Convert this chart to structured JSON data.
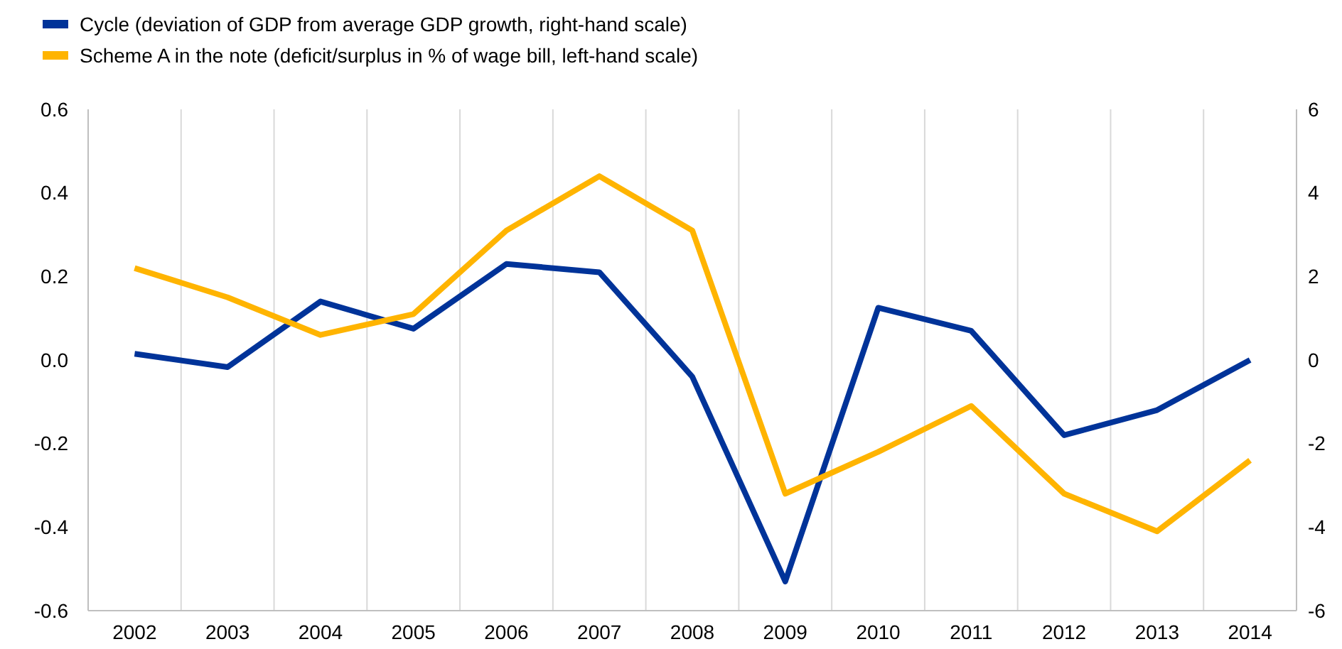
{
  "chart_data": {
    "type": "line",
    "categories": [
      "2002",
      "2003",
      "2004",
      "2005",
      "2006",
      "2007",
      "2008",
      "2009",
      "2010",
      "2011",
      "2012",
      "2013",
      "2014"
    ],
    "series": [
      {
        "name": "Cycle (deviation of GDP from average GDP growth, right-hand scale)",
        "color": "#003399",
        "axis": "y2",
        "values": [
          0.15,
          -0.17,
          1.4,
          0.75,
          2.3,
          2.1,
          -0.4,
          -5.3,
          1.25,
          0.7,
          -1.8,
          -1.2,
          0
        ]
      },
      {
        "name": "Scheme A in the note (deficit/surplus in % of wage bill, left-hand scale)",
        "color": "#ffb400",
        "values": [
          0.22,
          0.15,
          0.06,
          0.11,
          0.31,
          0.44,
          0.31,
          -0.32,
          -0.22,
          -0.11,
          -0.32,
          -0.41,
          -0.24
        ]
      }
    ],
    "ylim": [
      -0.6,
      0.6
    ],
    "yticks": [
      {
        "value": -0.6,
        "label": "-0.6"
      },
      {
        "value": -0.4,
        "label": "-0.4"
      },
      {
        "value": -0.2,
        "label": "-0.2"
      },
      {
        "value": 0,
        "label": "0.0"
      },
      {
        "value": 0.2,
        "label": "0.2"
      },
      {
        "value": 0.4,
        "label": "0.4"
      },
      {
        "value": 0.6,
        "label": "0.6"
      }
    ],
    "y2lim": [
      -6,
      6
    ],
    "y2ticks": [
      -6,
      -4,
      -2,
      0,
      2,
      4,
      6
    ],
    "grid": "x",
    "legend": "top left",
    "marker": "none",
    "line_style": "solid"
  }
}
